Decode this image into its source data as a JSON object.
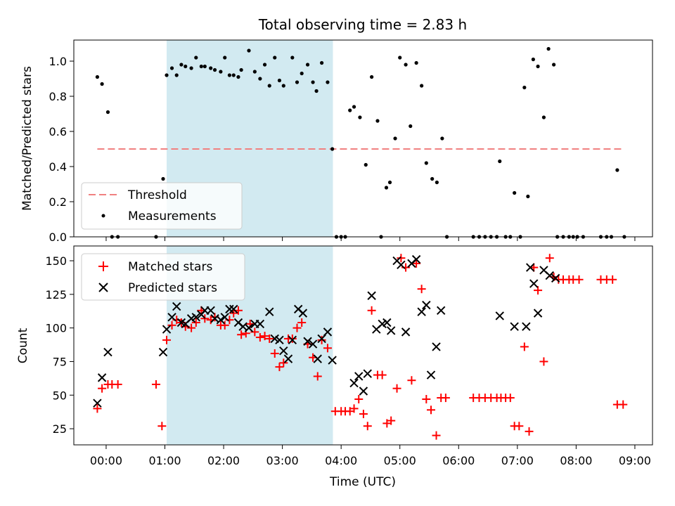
{
  "chart_data": [
    {
      "type": "scatter",
      "title": "Total observing time = 2.83 h",
      "ylabel": "Matched/Predicted stars",
      "ylim": [
        0,
        1.12
      ],
      "xlim": [
        -0.55,
        9.3
      ],
      "yticks": [
        0.0,
        0.2,
        0.4,
        0.6,
        0.8,
        1.0
      ],
      "ytick_labels": [
        "0.0",
        "0.2",
        "0.4",
        "0.6",
        "0.8",
        "1.0"
      ],
      "shaded_region": {
        "x": [
          1.03,
          3.86
        ],
        "color": "#add8e6"
      },
      "threshold": {
        "name": "Threshold",
        "value": 0.5,
        "x": [
          -0.15,
          8.8
        ],
        "color": "#f08080"
      },
      "legend": {
        "position": "lower-left",
        "entries": [
          "Threshold",
          "Measurements"
        ]
      },
      "series": [
        {
          "name": "Measurements",
          "color": "#000000",
          "x": [
            -0.15,
            -0.07,
            0.03,
            0.1,
            0.2,
            0.85,
            0.97,
            1.03,
            1.12,
            1.2,
            1.28,
            1.35,
            1.45,
            1.53,
            1.62,
            1.68,
            1.78,
            1.85,
            1.95,
            2.02,
            2.1,
            2.17,
            2.25,
            2.3,
            2.43,
            2.53,
            2.62,
            2.7,
            2.78,
            2.87,
            2.95,
            3.02,
            3.17,
            3.25,
            3.33,
            3.43,
            3.52,
            3.58,
            3.67,
            3.77,
            3.85,
            3.92,
            4.0,
            4.07,
            4.15,
            4.22,
            4.32,
            4.42,
            4.52,
            4.62,
            4.68,
            4.77,
            4.83,
            4.92,
            5.0,
            5.1,
            5.18,
            5.28,
            5.37,
            5.45,
            5.55,
            5.63,
            5.72,
            5.8,
            6.25,
            6.35,
            6.45,
            6.55,
            6.65,
            6.7,
            6.8,
            6.88,
            6.95,
            7.05,
            7.12,
            7.18,
            7.27,
            7.35,
            7.45,
            7.53,
            7.62,
            7.68,
            7.78,
            7.88,
            7.95,
            8.02,
            8.12,
            8.42,
            8.52,
            8.6,
            8.7,
            8.82
          ],
          "y": [
            0.91,
            0.87,
            0.71,
            0.0,
            0.0,
            0.0,
            0.33,
            0.92,
            0.96,
            0.92,
            0.98,
            0.97,
            0.96,
            1.02,
            0.97,
            0.97,
            0.96,
            0.95,
            0.94,
            1.02,
            0.92,
            0.92,
            0.91,
            0.95,
            1.06,
            0.94,
            0.9,
            0.98,
            0.86,
            1.02,
            0.89,
            0.86,
            1.02,
            0.88,
            0.93,
            0.98,
            0.88,
            0.83,
            0.99,
            0.88,
            0.5,
            0.0,
            0.0,
            0.0,
            0.72,
            0.74,
            0.68,
            0.41,
            0.91,
            0.66,
            0.0,
            0.28,
            0.31,
            0.56,
            1.02,
            0.98,
            0.63,
            0.99,
            0.86,
            0.42,
            0.33,
            0.31,
            0.56,
            0.0,
            0.0,
            0.0,
            0.0,
            0.0,
            0.0,
            0.43,
            0.0,
            0.0,
            0.25,
            0.0,
            0.85,
            0.23,
            1.01,
            0.97,
            0.68,
            1.07,
            0.98,
            0.0,
            0.0,
            0.0,
            0.0,
            0.0,
            0.0,
            0.0,
            0.0,
            0.0,
            0.38,
            0.0
          ]
        }
      ]
    },
    {
      "type": "scatter",
      "xlabel": "Time (UTC)",
      "ylabel": "Count",
      "ylim": [
        13,
        161
      ],
      "xlim": [
        -0.55,
        9.3
      ],
      "yticks": [
        25,
        50,
        75,
        100,
        125,
        150
      ],
      "ytick_labels": [
        "25",
        "50",
        "75",
        "100",
        "125",
        "150"
      ],
      "xticks": [
        0,
        1,
        2,
        3,
        4,
        5,
        6,
        7,
        8,
        9
      ],
      "xtick_labels": [
        "00:00",
        "01:00",
        "02:00",
        "03:00",
        "04:00",
        "05:00",
        "06:00",
        "07:00",
        "08:00",
        "09:00"
      ],
      "shaded_region": {
        "x": [
          1.03,
          3.86
        ],
        "color": "#add8e6"
      },
      "legend": {
        "position": "upper-left",
        "entries": [
          "Matched stars",
          "Predicted stars"
        ]
      },
      "series": [
        {
          "name": "Matched stars",
          "color": "#ff0000",
          "marker": "+",
          "x": [
            -0.15,
            -0.07,
            0.03,
            0.1,
            0.2,
            0.85,
            0.95,
            1.03,
            1.12,
            1.2,
            1.28,
            1.35,
            1.45,
            1.53,
            1.62,
            1.68,
            1.78,
            1.85,
            1.95,
            2.02,
            2.1,
            2.17,
            2.25,
            2.3,
            2.38,
            2.45,
            2.53,
            2.62,
            2.7,
            2.78,
            2.87,
            2.95,
            3.02,
            3.1,
            3.17,
            3.25,
            3.33,
            3.43,
            3.52,
            3.6,
            3.67,
            3.77,
            3.9,
            4.0,
            4.07,
            4.15,
            4.22,
            4.3,
            4.38,
            4.45,
            4.52,
            4.62,
            4.7,
            4.78,
            4.85,
            4.95,
            5.02,
            5.1,
            5.2,
            5.28,
            5.37,
            5.45,
            5.53,
            5.62,
            5.7,
            5.78,
            6.25,
            6.35,
            6.45,
            6.55,
            6.65,
            6.72,
            6.8,
            6.88,
            6.95,
            7.03,
            7.12,
            7.2,
            7.28,
            7.35,
            7.45,
            7.55,
            7.62,
            7.7,
            7.78,
            7.88,
            7.95,
            8.05,
            8.42,
            8.52,
            8.62,
            8.7,
            8.8
          ],
          "y": [
            40,
            55,
            58,
            58,
            58,
            58,
            27,
            91,
            102,
            106,
            104,
            101,
            100,
            104,
            113,
            107,
            106,
            108,
            102,
            102,
            106,
            111,
            113,
            95,
            96,
            103,
            97,
            93,
            94,
            92,
            81,
            71,
            74,
            92,
            92,
            100,
            104,
            88,
            78,
            64,
            91,
            85,
            38,
            38,
            38,
            38,
            40,
            47,
            36,
            27,
            113,
            65,
            65,
            29,
            31,
            55,
            152,
            145,
            61,
            148,
            129,
            47,
            39,
            20,
            48,
            48,
            48,
            48,
            48,
            48,
            48,
            48,
            48,
            48,
            27,
            27,
            86,
            23,
            145,
            128,
            75,
            152,
            138,
            136,
            136,
            136,
            136,
            136,
            136,
            136,
            136,
            43,
            43
          ]
        },
        {
          "name": "Predicted stars",
          "color": "#000000",
          "marker": "x",
          "x": [
            -0.15,
            -0.07,
            0.03,
            0.97,
            1.03,
            1.12,
            1.2,
            1.28,
            1.35,
            1.45,
            1.53,
            1.62,
            1.68,
            1.78,
            1.85,
            1.95,
            2.02,
            2.1,
            2.17,
            2.25,
            2.33,
            2.43,
            2.53,
            2.62,
            2.78,
            2.87,
            2.95,
            3.02,
            3.1,
            3.17,
            3.27,
            3.35,
            3.43,
            3.52,
            3.6,
            3.67,
            3.77,
            3.85,
            4.22,
            4.3,
            4.38,
            4.45,
            4.52,
            4.6,
            4.7,
            4.78,
            4.85,
            4.95,
            5.02,
            5.1,
            5.2,
            5.28,
            5.37,
            5.45,
            5.53,
            5.62,
            5.7,
            6.7,
            6.95,
            7.15,
            7.22,
            7.28,
            7.35,
            7.45,
            7.55,
            7.65
          ],
          "y": [
            44,
            63,
            82,
            82,
            99,
            108,
            116,
            104,
            103,
            107,
            108,
            110,
            113,
            113,
            107,
            106,
            108,
            114,
            114,
            104,
            101,
            100,
            103,
            103,
            112,
            92,
            91,
            83,
            77,
            91,
            114,
            111,
            90,
            88,
            77,
            92,
            97,
            76,
            59,
            64,
            53,
            66,
            124,
            99,
            103,
            104,
            98,
            150,
            147,
            97,
            148,
            151,
            112,
            117,
            65,
            86,
            113,
            109,
            101,
            101,
            145,
            133,
            111,
            143,
            139,
            137
          ]
        }
      ]
    }
  ]
}
